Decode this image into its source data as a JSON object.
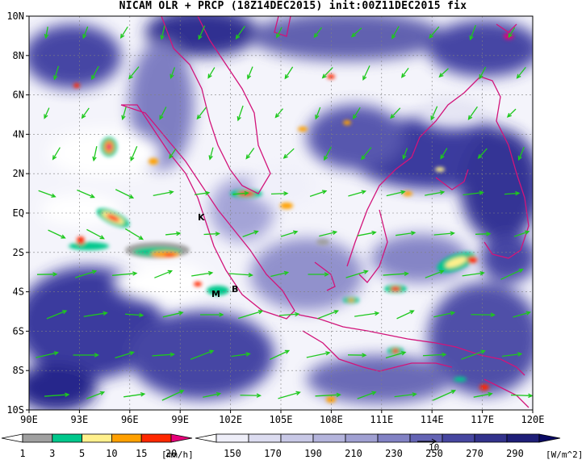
{
  "title": "NICAM OLR + PRCP (18Z14DEC2015) init:00Z11DEC2015 fix",
  "map": {
    "lon_range": [
      90,
      120
    ],
    "lat_range": [
      -10,
      10
    ],
    "lon_ticks": [
      "90E",
      "93E",
      "96E",
      "99E",
      "102E",
      "105E",
      "108E",
      "111E",
      "114E",
      "117E",
      "120E"
    ],
    "lat_ticks": [
      "10N",
      "8N",
      "6N",
      "4N",
      "2N",
      "EQ",
      "2S",
      "4S",
      "6S",
      "8S",
      "10S"
    ],
    "place_labels": [
      "K",
      "M",
      "B"
    ],
    "grid": true
  },
  "prcp_colorbar": {
    "labels": [
      "1",
      "3",
      "5",
      "10",
      "15",
      "20"
    ],
    "unit": "[mm/h]",
    "colors": [
      "#ffffff",
      "#a0a0a0",
      "#00c88c",
      "#fff08c",
      "#ffa000",
      "#ff2800",
      "#e6007a"
    ]
  },
  "olr_colorbar": {
    "labels": [
      "150",
      "170",
      "190",
      "210",
      "230",
      "250",
      "270",
      "290"
    ],
    "unit": "[W/m^2]",
    "colors": [
      "#ffffff",
      "#eeeef8",
      "#dcdcf0",
      "#c8c8e6",
      "#b4b4dc",
      "#a0a0d2",
      "#8282c4",
      "#6464b4",
      "#4646a0",
      "#32328c",
      "#1e1e78",
      "#0a0a64"
    ]
  },
  "vector_reference": "10",
  "colors": {
    "coast": "#d2147a",
    "vector": "#1ec81e",
    "grid": "#808080"
  }
}
